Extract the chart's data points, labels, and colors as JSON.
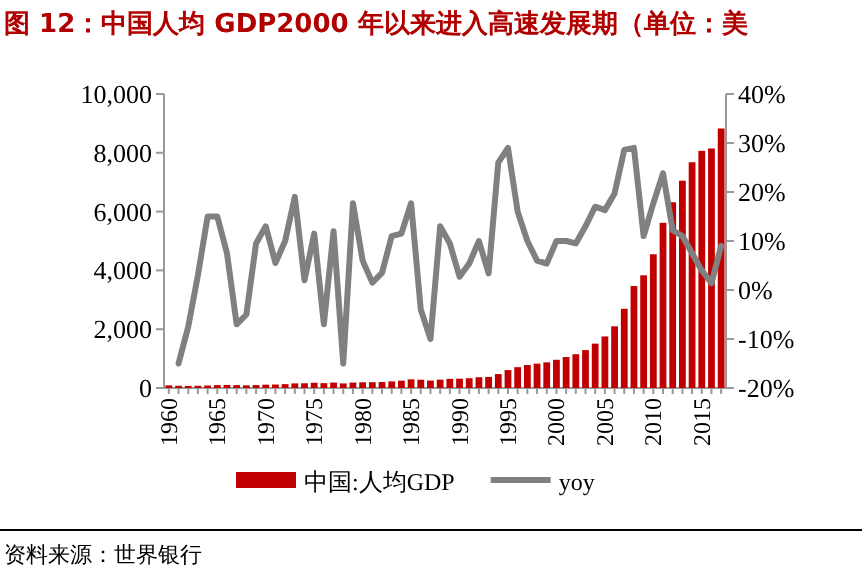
{
  "chart_data": {
    "type": "bar",
    "title": "图 12：中国人均 GDP2000 年以来进入高速发展期（单位：美",
    "categories": [
      "1960",
      null,
      null,
      null,
      null,
      "1965",
      null,
      null,
      null,
      null,
      "1970",
      null,
      null,
      null,
      null,
      "1975",
      null,
      null,
      null,
      null,
      "1980",
      null,
      null,
      null,
      null,
      "1985",
      null,
      null,
      null,
      null,
      "1990",
      null,
      null,
      null,
      null,
      "1995",
      null,
      null,
      null,
      null,
      "2000",
      null,
      null,
      null,
      null,
      "2005",
      null,
      null,
      null,
      null,
      "2010",
      null,
      null,
      null,
      null,
      "2015",
      null,
      null
    ],
    "series": [
      {
        "name": "中国:人均GDP",
        "color": "#c00000",
        "values": [
          90,
          76,
          71,
          74,
          85,
          98,
          104,
          97,
          91,
          100,
          113,
          119,
          132,
          157,
          160,
          178,
          165,
          185,
          156,
          184,
          195,
          197,
          203,
          225,
          250,
          294,
          282,
          252,
          284,
          311,
          318,
          333,
          366,
          377,
          473,
          610,
          709,
          782,
          829,
          873,
          959,
          1053,
          1149,
          1289,
          1509,
          1753,
          2099,
          2694,
          3468,
          3832,
          4550,
          5618,
          6317,
          7051,
          7679,
          8067,
          8148,
          8827
        ]
      },
      {
        "name": "yoy",
        "type": "line",
        "axis": "y2",
        "color": "#808080",
        "values": [
          null,
          -15,
          -7.5,
          3,
          15,
          15,
          7.5,
          -7,
          -5,
          9.5,
          13,
          5.5,
          10,
          19,
          2,
          11.5,
          -7,
          12,
          -15,
          17.7,
          6,
          1.5,
          3.5,
          11,
          11.5,
          17.7,
          -4,
          -10,
          13,
          9.5,
          2.7,
          5.4,
          10,
          3.4,
          26,
          29,
          16,
          10,
          6,
          5.4,
          10,
          10,
          9.5,
          13,
          17,
          16.3,
          19.7,
          28.6,
          29,
          11,
          17.7,
          23.8,
          12.2,
          11,
          7.5,
          4,
          1.4,
          9
        ]
      }
    ],
    "ylim": [
      0,
      10000
    ],
    "yticks": [
      0,
      {
        "value": 2000,
        "label": "2,000"
      },
      {
        "value": 4000,
        "label": "4,000"
      },
      {
        "value": 6000,
        "label": "6,000"
      },
      {
        "value": 8000,
        "label": "8,000"
      },
      {
        "value": 10000,
        "label": "10,000"
      }
    ],
    "y2lim": [
      -20,
      40
    ],
    "y2ticks": [
      {
        "value": -20,
        "label": "-20%"
      },
      {
        "value": -10,
        "label": "-10%"
      },
      {
        "value": 0,
        "label": "0%"
      },
      {
        "value": 10,
        "label": "10%"
      },
      {
        "value": 20,
        "label": "20%"
      },
      {
        "value": 30,
        "label": "30%"
      },
      {
        "value": 40,
        "label": "40%"
      }
    ],
    "legend": "bottom",
    "annotations": [
      "资料来源：世界银行"
    ]
  }
}
